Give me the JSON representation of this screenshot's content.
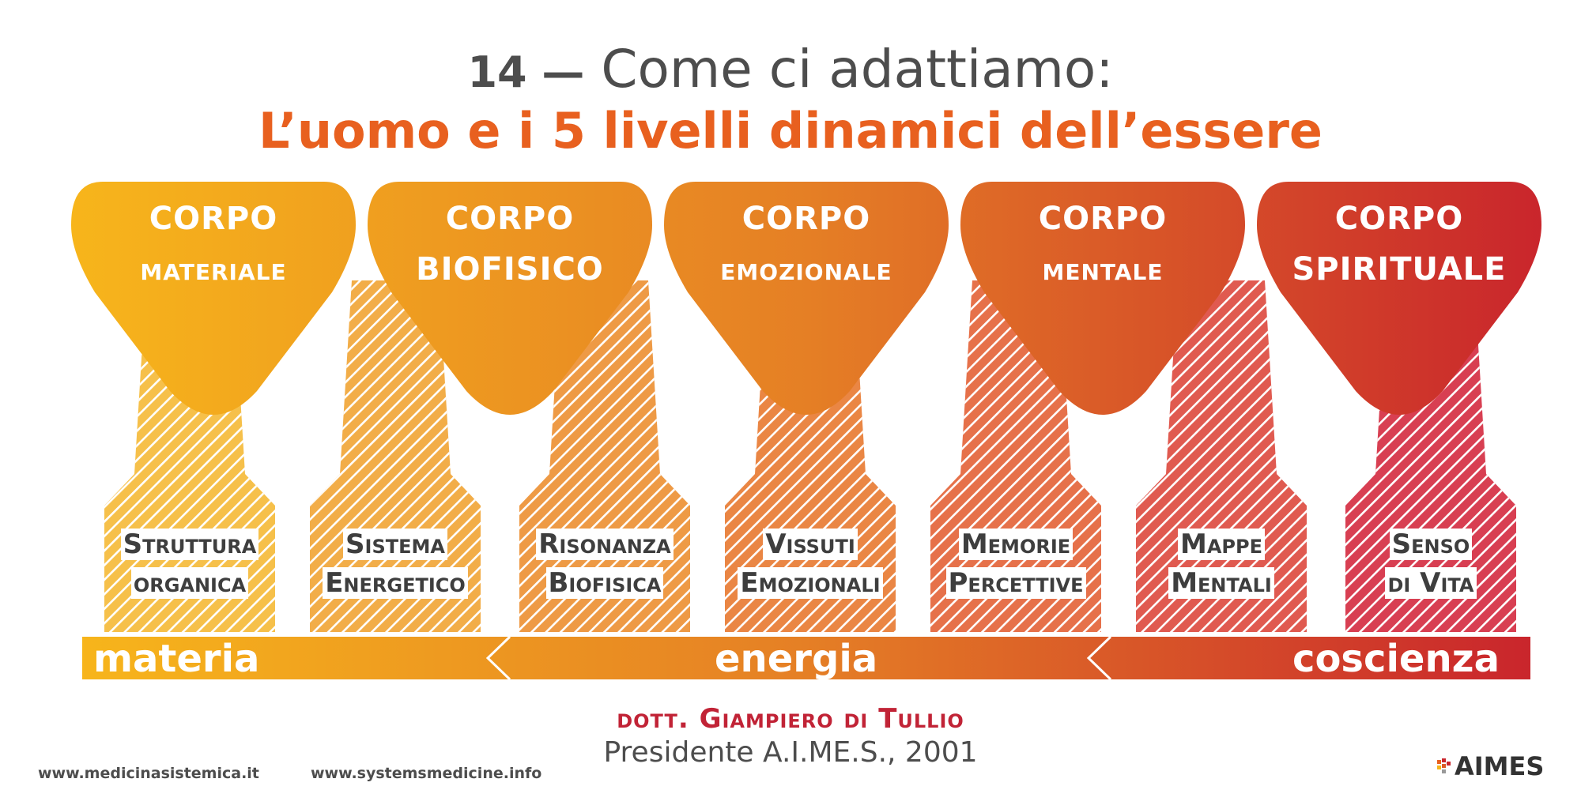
{
  "title": {
    "number": "14 —",
    "line1": "Come ci adattiamo:",
    "line2": "L’uomo e i 5 livelli dinamici dell’essere"
  },
  "bodies": [
    {
      "line1": "CORPO",
      "line2": "materiale",
      "color": "#f7b51b"
    },
    {
      "line1": "CORPO",
      "line2": "BIOFISICO",
      "color": "#ec9a22"
    },
    {
      "line1": "CORPO",
      "line2": "emozionale",
      "color": "#e57f25"
    },
    {
      "line1": "CORPO",
      "line2": "mentale",
      "color": "#dc5a27"
    },
    {
      "line1": "CORPO",
      "line2": "SPIRITUALE",
      "color": "#c9252c"
    }
  ],
  "sub_levels": [
    {
      "line1": "Struttura",
      "line2": "organica",
      "color": "#f6c04a"
    },
    {
      "line1": "Sistema",
      "line2": "Energetico",
      "color": "#f2ad48"
    },
    {
      "line1": "Risonanza",
      "line2": "Biofisica",
      "color": "#ee9a45"
    },
    {
      "line1": "Vissuti",
      "line2": "Emozionali",
      "color": "#ea8644"
    },
    {
      "line1": "Memorie",
      "line2": "Percettive",
      "color": "#e6714a"
    },
    {
      "line1": "Mappe",
      "line2": "Mentali",
      "color": "#e05a50"
    },
    {
      "line1": "Senso",
      "line2": "di Vita",
      "color": "#d83f52"
    }
  ],
  "bar": {
    "labels": [
      "materia",
      "energia",
      "coscienza"
    ],
    "color_start": "#f7b51b",
    "color_end": "#c9252c"
  },
  "author": {
    "name": "dott. Giampiero di Tullio",
    "role": "Presidente A.I.ME.S., 2001"
  },
  "footer": {
    "url1": "www.medicinasistemica.it",
    "url2": "www.systemsmedicine.info",
    "logo": "AIMES"
  }
}
